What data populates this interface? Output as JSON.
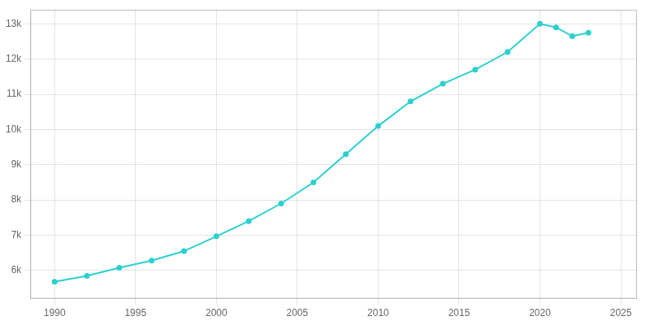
{
  "chart_data": {
    "type": "line",
    "x": [
      1990,
      1992,
      1994,
      1996,
      1998,
      2000,
      2002,
      2004,
      2006,
      2008,
      2010,
      2012,
      2014,
      2016,
      2018,
      2020,
      2021,
      2022,
      2023
    ],
    "values": [
      5680,
      5850,
      6080,
      6280,
      6550,
      6970,
      7400,
      7900,
      8500,
      9300,
      10100,
      10800,
      11300,
      11700,
      12200,
      13000,
      12900,
      12650,
      12750
    ],
    "color": "#2dcfcf",
    "marker": "o",
    "xlim": [
      1988.5,
      2026
    ],
    "ylim": [
      5200,
      13400
    ],
    "xticks": [
      1990,
      1995,
      2000,
      2005,
      2010,
      2015,
      2020,
      2025
    ],
    "yticks": [
      {
        "value": 6000,
        "label": "6k"
      },
      {
        "value": 7000,
        "label": "7k"
      },
      {
        "value": 8000,
        "label": "8k"
      },
      {
        "value": 9000,
        "label": "9k"
      },
      {
        "value": 10000,
        "label": "10k"
      },
      {
        "value": 11000,
        "label": "11k"
      },
      {
        "value": 12000,
        "label": "12k"
      },
      {
        "value": 13000,
        "label": "13k"
      }
    ],
    "grid": true
  }
}
